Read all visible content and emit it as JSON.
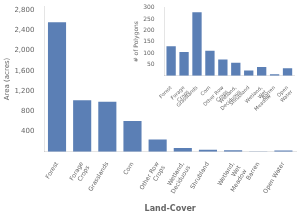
{
  "chart_data": [
    {
      "type": "bar",
      "categories": [
        "Forest",
        "Forage\nCrops",
        "Grasslands",
        "Corn",
        "Other Row\nCrops",
        "Wetland,\nDeciduous",
        "Shrubland",
        "Wetland,\nWet\nMeadow",
        "Barren",
        "Open Water"
      ],
      "values": [
        2560,
        1020,
        990,
        610,
        240,
        75,
        38,
        28,
        5,
        25
      ],
      "color": "#5b7fb5",
      "xlabel": "Land-Cover",
      "ylabel": "Area (acres)",
      "ylim": [
        0,
        2880
      ],
      "yticks": [
        400,
        800,
        {
          "value": 1200,
          "label": "1,200"
        },
        {
          "value": 1600,
          "label": "1,600"
        },
        {
          "value": 2000,
          "label": "2,000"
        },
        {
          "value": 2400,
          "label": "2,400"
        },
        {
          "value": 2800,
          "label": "2,800"
        }
      ],
      "grid": false
    },
    {
      "type": "bar",
      "categories": [
        "Forest",
        "Forage\nCrops",
        "Grasslands",
        "Corn",
        "Other Row\nCrops",
        "Wetland,\nDeciduous",
        "Shrubland",
        "Wetland,\nWet\nMeadow",
        "Barren",
        "Open\nWater"
      ],
      "values": [
        130,
        105,
        280,
        110,
        72,
        57,
        23,
        38,
        7,
        33
      ],
      "color": "#5b7fb5",
      "ylabel": "# of Polygons",
      "ylim": [
        0,
        300
      ],
      "yticks": [
        50,
        100,
        150,
        200,
        250,
        300
      ],
      "grid": false
    }
  ]
}
